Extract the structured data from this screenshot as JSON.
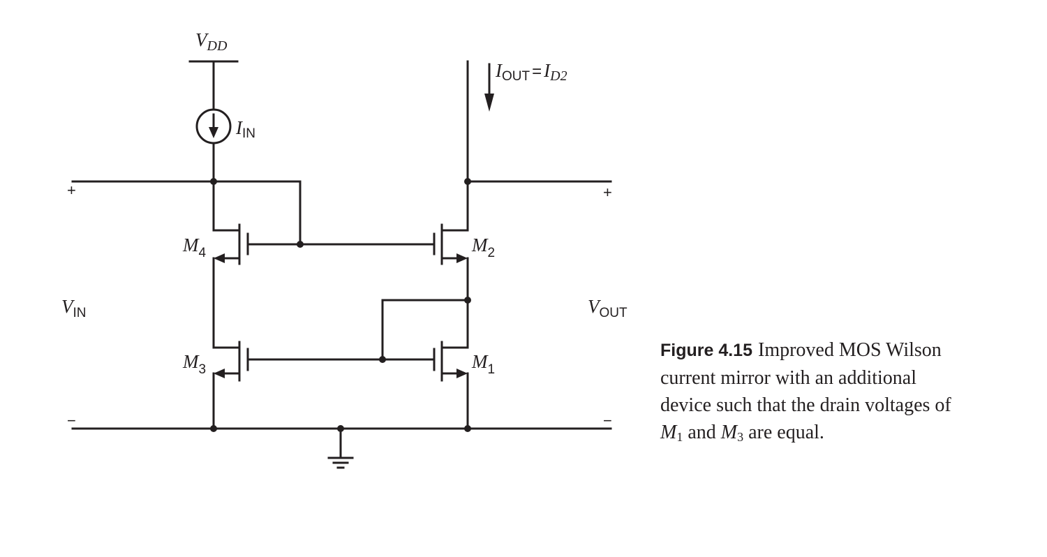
{
  "figure": {
    "labels": {
      "vdd": {
        "main": "V",
        "sub": "DD"
      },
      "iin": {
        "main": "I",
        "sub": "IN"
      },
      "iout": {
        "main": "I",
        "sub": "OUT",
        "eq": "=",
        "main2": "I",
        "sub2": "D2"
      },
      "vin": {
        "main": "V",
        "sub": "IN"
      },
      "vout": {
        "main": "V",
        "sub": "OUT"
      },
      "m1": {
        "main": "M",
        "sub": "1"
      },
      "m2": {
        "main": "M",
        "sub": "2"
      },
      "m3": {
        "main": "M",
        "sub": "3"
      },
      "m4": {
        "main": "M",
        "sub": "4"
      },
      "plus": "+",
      "minus": "−"
    }
  },
  "caption": {
    "figure_number": "Figure 4.15",
    "text_1": "Improved MOS Wilson current mirror with an additional device such that the drain voltages of",
    "m1_main": "M",
    "m1_sub": "1",
    "and": "and",
    "m3_main": "M",
    "m3_sub": "3",
    "text_2": "are equal."
  }
}
